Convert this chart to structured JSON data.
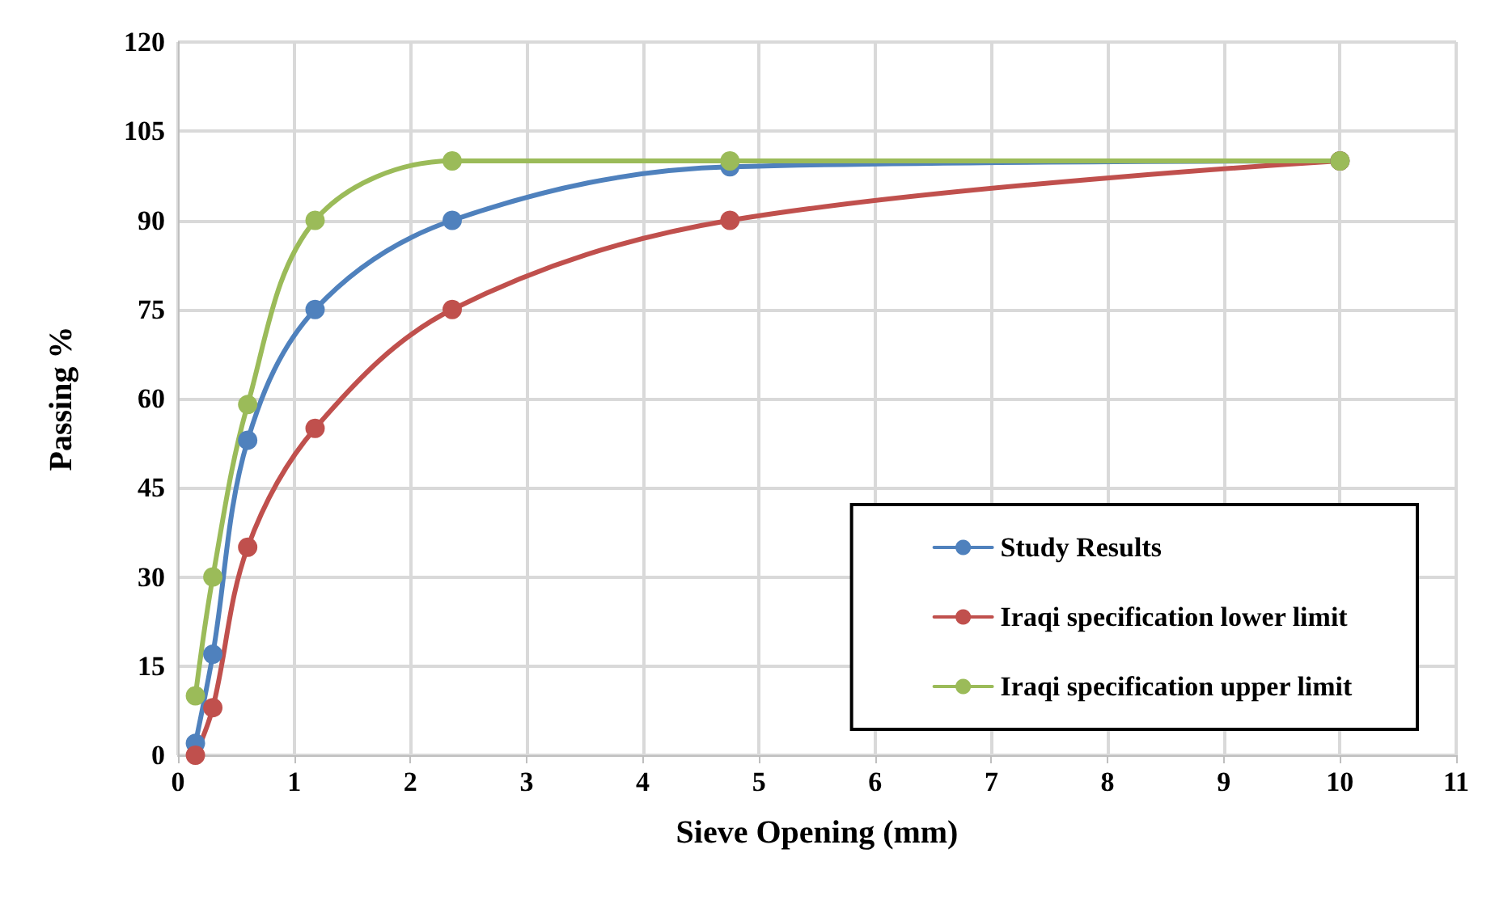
{
  "chart_data": {
    "type": "line",
    "xlabel": "Sieve Opening (mm)",
    "ylabel": "Passing %",
    "x": [
      0.15,
      0.3,
      0.6,
      1.18,
      2.36,
      4.75,
      10
    ],
    "series": [
      {
        "name": "Study Results",
        "color": "#4f81bd",
        "values": [
          2,
          17,
          53,
          75,
          90,
          99,
          100
        ]
      },
      {
        "name": "Iraqi specification lower limit",
        "color": "#c0504d",
        "values": [
          0,
          8,
          35,
          55,
          75,
          90,
          100
        ]
      },
      {
        "name": "Iraqi specification upper limit",
        "color": "#9bbb59",
        "values": [
          10,
          30,
          59,
          90,
          100,
          100,
          100
        ]
      }
    ],
    "xlim": [
      0,
      11
    ],
    "xticks": [
      0,
      1,
      2,
      3,
      4,
      5,
      6,
      7,
      8,
      9,
      10,
      11
    ],
    "ylim": [
      0,
      120
    ],
    "yticks": [
      0,
      15,
      30,
      45,
      60,
      75,
      90,
      105,
      120
    ],
    "grid": true,
    "legend": "bottom right",
    "marker": "circle",
    "line_style": "solid"
  }
}
